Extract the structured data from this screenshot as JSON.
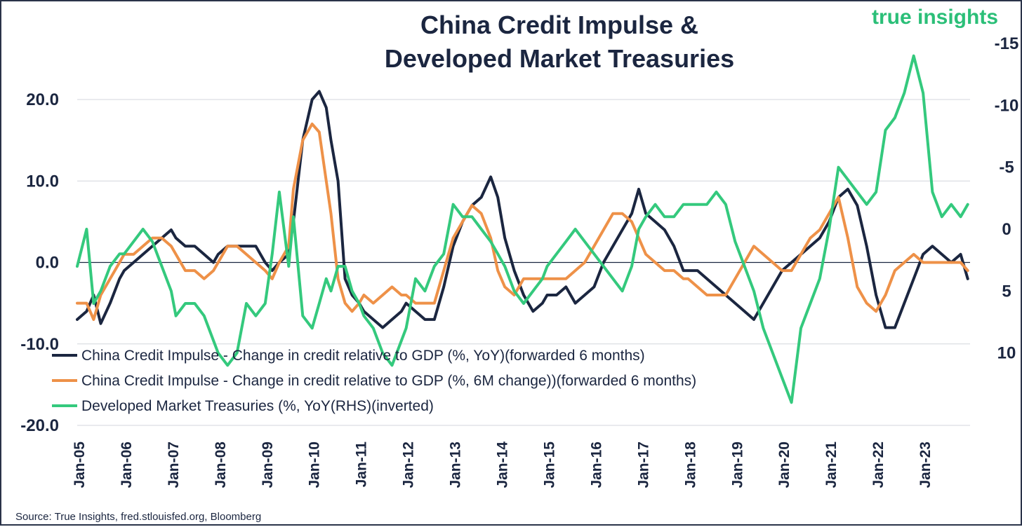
{
  "brand": {
    "name": "true insights",
    "color": "#2bbf78"
  },
  "source": "Source: True Insights, fred.stlouisfed.org, Bloomberg",
  "chart_data": {
    "type": "line",
    "title": "China Credit Impulse &",
    "title_line2": "Developed Market Treasuries",
    "xlabel": "",
    "ylabel": "",
    "x_tick_labels": [
      "Jan-05",
      "Jan-06",
      "Jan-07",
      "Jan-08",
      "Jan-09",
      "Jan-10",
      "Jan-11",
      "Jan-12",
      "Jan-13",
      "Jan-14",
      "Jan-15",
      "Jan-16",
      "Jan-17",
      "Jan-18",
      "Jan-19",
      "Jan-20",
      "Jan-21",
      "Jan-22",
      "Jan-23"
    ],
    "x_range": [
      2005.0,
      2024.0
    ],
    "y_left": {
      "range": [
        -20,
        20
      ],
      "ticks": [
        20,
        10,
        0,
        -10,
        -20
      ],
      "tick_labels": [
        "20.0",
        "10.0",
        "0.0",
        "-10.0",
        "-20.0"
      ]
    },
    "y_right": {
      "range": [
        -15,
        15
      ],
      "inverted": true,
      "ticks": [
        -15,
        -10,
        -5,
        0,
        5,
        10
      ],
      "tick_labels": [
        "-15",
        "-10",
        "-5",
        "0",
        "5",
        "10"
      ]
    },
    "legend_position": "bottom-left",
    "series": [
      {
        "name": "China Credit Impulse - Change in credit relative to GDP (%, YoY)(forwarded 6 months)",
        "axis": "left",
        "color": "#1b2640",
        "x": [
          2005.0,
          2005.2,
          2005.35,
          2005.5,
          2005.7,
          2005.9,
          2006.0,
          2006.2,
          2006.4,
          2006.6,
          2006.8,
          2007.0,
          2007.1,
          2007.3,
          2007.5,
          2007.7,
          2007.9,
          2008.0,
          2008.2,
          2008.4,
          2008.6,
          2008.8,
          2009.0,
          2009.15,
          2009.3,
          2009.5,
          2009.6,
          2009.8,
          2010.0,
          2010.15,
          2010.3,
          2010.4,
          2010.55,
          2010.7,
          2010.85,
          2011.0,
          2011.1,
          2011.3,
          2011.5,
          2011.7,
          2011.9,
          2012.0,
          2012.2,
          2012.4,
          2012.6,
          2012.8,
          2013.0,
          2013.2,
          2013.4,
          2013.6,
          2013.8,
          2013.95,
          2014.1,
          2014.3,
          2014.5,
          2014.7,
          2014.9,
          2015.0,
          2015.2,
          2015.4,
          2015.6,
          2015.8,
          2016.0,
          2016.2,
          2016.4,
          2016.6,
          2016.8,
          2016.95,
          2017.1,
          2017.3,
          2017.5,
          2017.7,
          2017.9,
          2018.0,
          2018.2,
          2018.4,
          2018.6,
          2018.8,
          2019.0,
          2019.2,
          2019.4,
          2019.6,
          2019.8,
          2020.0,
          2020.2,
          2020.4,
          2020.6,
          2020.8,
          2021.0,
          2021.2,
          2021.4,
          2021.6,
          2021.8,
          2022.0,
          2022.2,
          2022.4,
          2022.6,
          2022.8,
          2023.0,
          2023.2,
          2023.4,
          2023.6,
          2023.8,
          2023.95
        ],
        "values": [
          -7,
          -6,
          -4,
          -7.5,
          -5,
          -2,
          -1,
          0,
          1,
          2,
          3,
          4,
          3,
          2,
          2,
          1,
          0,
          1,
          2,
          2,
          2,
          2,
          0,
          -1,
          0,
          1,
          5,
          15,
          20,
          21,
          19,
          15,
          10,
          -2,
          -4,
          -5,
          -6,
          -7,
          -8,
          -7,
          -6,
          -5,
          -6,
          -7,
          -7,
          -3,
          2,
          5,
          7,
          8,
          10.5,
          8,
          3,
          -1,
          -4,
          -6,
          -5,
          -4,
          -4,
          -3,
          -5,
          -4,
          -3,
          0,
          2,
          4,
          6,
          9,
          6,
          5,
          4,
          2,
          -1,
          -1,
          -1,
          -2,
          -3,
          -4,
          -5,
          -6,
          -7,
          -5,
          -3,
          -1,
          0,
          1,
          2,
          3,
          5,
          8,
          9,
          7,
          2,
          -4,
          -8,
          -8,
          -5,
          -2,
          1,
          2,
          1,
          0,
          1,
          -2
        ]
      },
      {
        "name": "China Credit Impulse - Change in credit relative to GDP (%, 6M change))(forwarded 6 months)",
        "axis": "left",
        "color": "#ee9148",
        "x": [
          2005.0,
          2005.2,
          2005.35,
          2005.5,
          2005.7,
          2005.9,
          2006.0,
          2006.2,
          2006.4,
          2006.6,
          2006.8,
          2007.0,
          2007.1,
          2007.3,
          2007.5,
          2007.7,
          2007.9,
          2008.0,
          2008.2,
          2008.4,
          2008.6,
          2008.8,
          2009.0,
          2009.15,
          2009.3,
          2009.5,
          2009.6,
          2009.8,
          2010.0,
          2010.15,
          2010.3,
          2010.4,
          2010.55,
          2010.7,
          2010.85,
          2011.0,
          2011.1,
          2011.3,
          2011.5,
          2011.7,
          2011.9,
          2012.0,
          2012.2,
          2012.4,
          2012.6,
          2012.8,
          2013.0,
          2013.2,
          2013.4,
          2013.6,
          2013.8,
          2013.95,
          2014.1,
          2014.3,
          2014.5,
          2014.7,
          2014.9,
          2015.0,
          2015.2,
          2015.4,
          2015.6,
          2015.8,
          2016.0,
          2016.2,
          2016.4,
          2016.6,
          2016.8,
          2016.95,
          2017.1,
          2017.3,
          2017.5,
          2017.7,
          2017.9,
          2018.0,
          2018.2,
          2018.4,
          2018.6,
          2018.8,
          2019.0,
          2019.2,
          2019.4,
          2019.6,
          2019.8,
          2020.0,
          2020.2,
          2020.4,
          2020.6,
          2020.8,
          2021.0,
          2021.2,
          2021.4,
          2021.6,
          2021.8,
          2022.0,
          2022.2,
          2022.4,
          2022.6,
          2022.8,
          2023.0,
          2023.2,
          2023.4,
          2023.6,
          2023.8,
          2023.95
        ],
        "values": [
          -5,
          -5,
          -7,
          -4,
          -2,
          0,
          1,
          1,
          2,
          3,
          3,
          2,
          1,
          -1,
          -1,
          -2,
          -1,
          0,
          2,
          2,
          1,
          0,
          -1,
          -2,
          0,
          2,
          9,
          15,
          17,
          16,
          10,
          6,
          -2,
          -5,
          -6,
          -5,
          -4,
          -5,
          -4,
          -3,
          -4,
          -4,
          -5,
          -5,
          -5,
          -1,
          3,
          5,
          7,
          6,
          3,
          -1,
          -3,
          -4,
          -2,
          -2,
          -2,
          -2,
          -2,
          -2,
          -1,
          0,
          2,
          4,
          6,
          6,
          5,
          3,
          1,
          0,
          -1,
          -1,
          -2,
          -2,
          -3,
          -4,
          -4,
          -4,
          -2,
          0,
          2,
          1,
          0,
          -1,
          -1,
          1,
          3,
          4,
          6,
          8,
          3,
          -3,
          -5,
          -6,
          -4,
          -1,
          0,
          1,
          0,
          0,
          0,
          0,
          0,
          -1
        ]
      },
      {
        "name": "Developed Market Treasuries (%, YoY(RHS)(inverted)",
        "axis": "right",
        "color": "#34c97d",
        "x": [
          2005.0,
          2005.2,
          2005.35,
          2005.5,
          2005.7,
          2005.9,
          2006.0,
          2006.2,
          2006.4,
          2006.6,
          2006.8,
          2007.0,
          2007.1,
          2007.3,
          2007.5,
          2007.7,
          2007.9,
          2008.0,
          2008.2,
          2008.4,
          2008.6,
          2008.8,
          2009.0,
          2009.15,
          2009.3,
          2009.5,
          2009.6,
          2009.8,
          2010.0,
          2010.15,
          2010.3,
          2010.4,
          2010.55,
          2010.7,
          2010.85,
          2011.0,
          2011.1,
          2011.3,
          2011.5,
          2011.7,
          2011.9,
          2012.0,
          2012.2,
          2012.4,
          2012.6,
          2012.8,
          2013.0,
          2013.2,
          2013.4,
          2013.6,
          2013.8,
          2013.95,
          2014.1,
          2014.3,
          2014.5,
          2014.7,
          2014.9,
          2015.0,
          2015.2,
          2015.4,
          2015.6,
          2015.8,
          2016.0,
          2016.2,
          2016.4,
          2016.6,
          2016.8,
          2016.95,
          2017.1,
          2017.3,
          2017.5,
          2017.7,
          2017.9,
          2018.0,
          2018.2,
          2018.4,
          2018.6,
          2018.8,
          2019.0,
          2019.2,
          2019.4,
          2019.6,
          2019.8,
          2020.0,
          2020.2,
          2020.4,
          2020.6,
          2020.8,
          2021.0,
          2021.2,
          2021.4,
          2021.6,
          2021.8,
          2022.0,
          2022.2,
          2022.4,
          2022.6,
          2022.8,
          2023.0,
          2023.2,
          2023.4,
          2023.6,
          2023.8,
          2023.95
        ],
        "values": [
          3,
          0,
          6,
          5,
          3,
          2,
          2,
          1,
          0,
          1,
          3,
          5,
          7,
          6,
          6,
          7,
          9,
          10,
          11,
          10,
          6,
          7,
          6,
          2,
          -3,
          3,
          -1,
          7,
          8,
          6,
          4,
          5,
          3,
          3,
          5,
          6,
          7,
          8,
          10,
          11,
          9,
          8,
          4,
          5,
          3,
          2,
          -2,
          -1,
          -1,
          0,
          1,
          2,
          3,
          5,
          6,
          5,
          4,
          3,
          2,
          1,
          0,
          1,
          2,
          3,
          4,
          5,
          3,
          0,
          -1,
          -2,
          -1,
          -1,
          -2,
          -2,
          -2,
          -2,
          -3,
          -2,
          1,
          3,
          5,
          8,
          10,
          12,
          14,
          8,
          6,
          4,
          0,
          -5,
          -4,
          -3,
          -2,
          -3,
          -8,
          -9,
          -11,
          -14,
          -11,
          -3,
          -1,
          -2,
          -1,
          -2
        ]
      }
    ]
  }
}
